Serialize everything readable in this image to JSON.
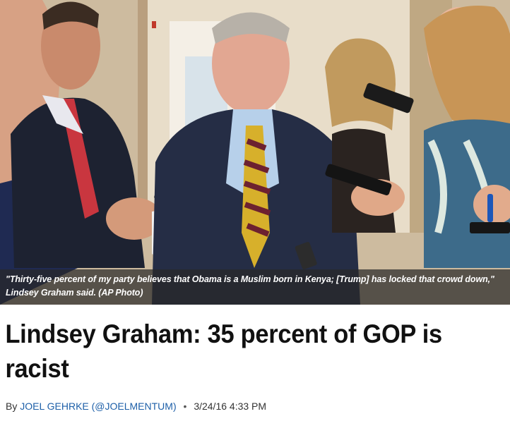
{
  "photo": {
    "caption": "\"Thirty-five percent of my party believes that Obama is a Muslim born in Kenya; [Trump] has locked that crowd down,\" Lindsey Graham said. (AP Photo)"
  },
  "article": {
    "headline": "Lindsey Graham: 35 percent of GOP is racist",
    "byline": {
      "prefix": "By",
      "author": "JOEL GEHRKE (@JOELMENTUM)",
      "separator": "•",
      "timestamp": "3/24/16 4:33 PM"
    }
  },
  "colors": {
    "author_link": "#1d5fa8",
    "caption_background": "#282828",
    "headline_text": "#111111"
  }
}
